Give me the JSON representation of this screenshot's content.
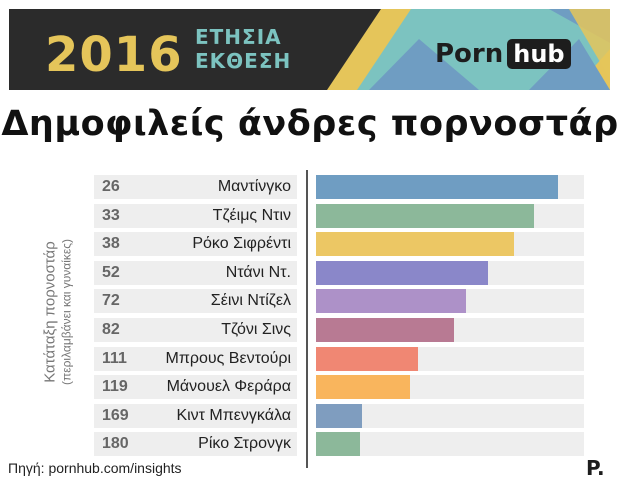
{
  "header": {
    "year": "2016",
    "report_line1": "ΕΤΗΣΙΑ",
    "report_line2": "ΕΚΘΕΣΗ",
    "logo_part1": "Porn",
    "logo_part2": "hub",
    "colors": {
      "dark": "#2b2b2b",
      "gold": "#e5c55a",
      "teal": "#7cc3c0",
      "blue": "#6f9dc2"
    }
  },
  "chart_data": {
    "type": "bar",
    "title": "Δημοφιλείς άνδρες πορνοστάρ",
    "ylabel": "Κατάταξη πορνοστάρ",
    "ylabel_note": "(περιλαμβάνει και γυναίκες)",
    "categories": [
      "Μαντίνγκο",
      "Τζέιμς Ντιν",
      "Ρόκο Σιφρέντι",
      "Ντάνι Ντ.",
      "Σέινι Ντίζελ",
      "Τζόνι Σινς",
      "Μπρους Βεντούρι",
      "Μάνουελ Φεράρα",
      "Κιντ Μπενγκάλα",
      "Ρίκο Στρονγκ"
    ],
    "ranks": [
      26,
      33,
      38,
      52,
      72,
      82,
      111,
      119,
      169,
      180
    ],
    "bar_fraction": [
      1.0,
      0.9,
      0.82,
      0.71,
      0.62,
      0.57,
      0.42,
      0.39,
      0.19,
      0.18
    ],
    "colors": [
      "#6f9dc2",
      "#8cb89a",
      "#ecc764",
      "#8a87c9",
      "#ad91c8",
      "#b87a93",
      "#f08773",
      "#f9b55d",
      "#7f9dbf",
      "#8cb89a"
    ]
  },
  "footer": {
    "source": "Πηγή: pornhub.com/insights",
    "brand": "P."
  }
}
